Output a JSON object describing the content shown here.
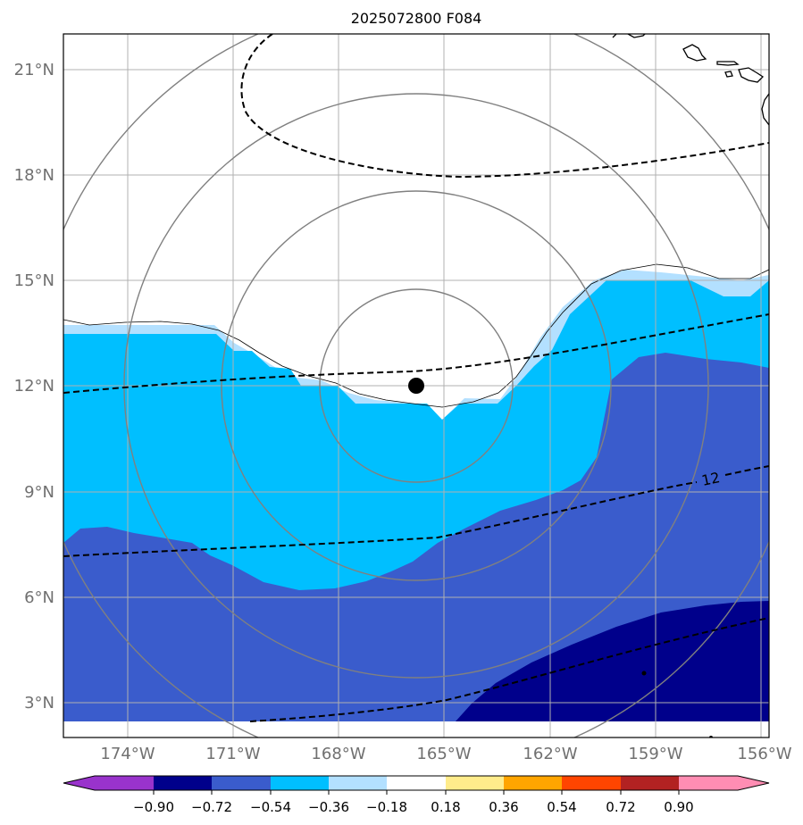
{
  "title": "2025072800 F084",
  "map": {
    "lat_ticks": [
      "3°N",
      "6°N",
      "9°N",
      "12°N",
      "15°N",
      "18°N",
      "21°N"
    ],
    "lon_ticks": [
      "174°W",
      "171°W",
      "168°W",
      "165°W",
      "162°W",
      "159°W",
      "156°W"
    ],
    "extent": {
      "lon_min": -175.8,
      "lon_max": -155.7,
      "lat_min": 2.0,
      "lat_max": 22.0
    },
    "grid": true,
    "center_marker": {
      "lon": -165.8,
      "lat": 12.0
    },
    "range_rings_deg": [
      2.7,
      5.4,
      8.1,
      10.8
    ],
    "contour_label": "12",
    "land_features": [
      "hawaiian-islands-coastline"
    ]
  },
  "colorbar": {
    "tick_labels": [
      "−0.90",
      "−0.72",
      "−0.54",
      "−0.36",
      "−0.18",
      "0.18",
      "0.36",
      "0.54",
      "0.72",
      "0.90"
    ],
    "colors": [
      "#9933cc",
      "#00008b",
      "#3a5ccc",
      "#00bfff",
      "#b3e0ff",
      "#ffffff",
      "#ffec8b",
      "#ffa500",
      "#ff4500",
      "#b22222",
      "#ff8db3"
    ],
    "extend": "both"
  },
  "legend_colors": {
    "fill_light": "#b3e0ff",
    "fill_cyan": "#00bfff",
    "fill_blue": "#3a5ccc",
    "fill_navy": "#00008b",
    "ring_color": "#808080",
    "grid_color": "#b0b0b0",
    "tick_label_color": "#707070"
  }
}
